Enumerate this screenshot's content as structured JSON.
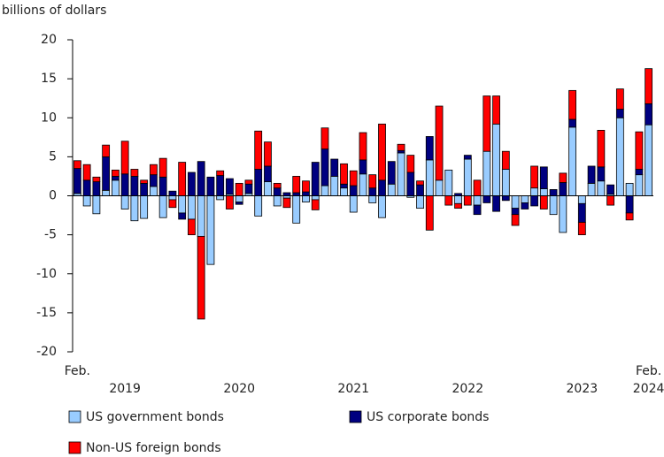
{
  "chart_data": {
    "type": "bar",
    "stacked": true,
    "y_axis_label": "billions of dollars",
    "categories": [
      null,
      null,
      null,
      null,
      null,
      null,
      null,
      null,
      null,
      null,
      null,
      null,
      null,
      null,
      null,
      null,
      null,
      null,
      null,
      null,
      null,
      null,
      null,
      null,
      null,
      null,
      null,
      null,
      null,
      null,
      null,
      null,
      null,
      null,
      null,
      null,
      null,
      null,
      null,
      null,
      null,
      null,
      null,
      null,
      null,
      null,
      null,
      null,
      null,
      null,
      null,
      null,
      null,
      null,
      null,
      null,
      null,
      null,
      null,
      null,
      null
    ],
    "x_axis_labels": [
      "Feb.",
      "2019",
      "2020",
      "2021",
      "2022",
      "2023",
      "Feb.",
      "2024"
    ],
    "series": [
      {
        "name": "US government bonds",
        "color": "#99ccff",
        "values": [
          0.3,
          -1.3,
          -2.3,
          0.7,
          2.0,
          -1.7,
          -3.2,
          -2.9,
          1.2,
          -2.8,
          -0.5,
          -2.2,
          -3.0,
          -5.2,
          -8.8,
          -0.5,
          0.2,
          -0.8,
          0.3,
          -2.6,
          1.8,
          -1.3,
          -0.3,
          -3.5,
          -0.8,
          -0.5,
          1.3,
          2.5,
          1.0,
          -2.1,
          2.8,
          -0.9,
          -2.8,
          1.5,
          5.5,
          -0.2,
          -1.6,
          4.6,
          2.0,
          3.3,
          -1.0,
          4.7,
          -1.2,
          5.7,
          9.2,
          3.4,
          -1.6,
          -0.9,
          1.0,
          0.9,
          -2.4,
          -4.7,
          8.8,
          -1.0,
          1.6,
          1.9,
          0.2,
          10.0,
          1.6,
          2.7,
          9.1
        ]
      },
      {
        "name": "US corporate bonds",
        "color": "#000080",
        "values": [
          3.2,
          2.0,
          1.8,
          4.3,
          0.5,
          2.8,
          2.5,
          1.6,
          1.5,
          2.4,
          0.6,
          -0.8,
          3.0,
          4.4,
          2.4,
          2.6,
          2.0,
          -0.3,
          1.2,
          3.4,
          2.0,
          1.0,
          0.4,
          0.4,
          0.5,
          4.3,
          4.7,
          2.2,
          0.5,
          1.3,
          1.8,
          1.0,
          2.0,
          2.9,
          0.3,
          3.0,
          1.4,
          3.0,
          0,
          0,
          0.3,
          0.5,
          -1.2,
          -0.9,
          -2.0,
          -0.6,
          -0.8,
          -0.8,
          -1.3,
          2.8,
          0.8,
          1.7,
          1.0,
          -2.4,
          2.2,
          1.8,
          1.2,
          1.1,
          -2.2,
          0.7,
          2.7
        ]
      },
      {
        "name": "Non-US foreign bonds",
        "color": "#ff0000",
        "values": [
          1.0,
          2.0,
          0.6,
          1.5,
          0.8,
          4.2,
          0.9,
          0.4,
          1.3,
          2.4,
          -1.0,
          4.3,
          -2.0,
          -10.6,
          0,
          0.6,
          -1.7,
          1.6,
          0.5,
          4.9,
          3.1,
          0.6,
          -1.2,
          2.1,
          1.4,
          -1.3,
          2.7,
          0,
          2.6,
          1.9,
          3.5,
          1.7,
          7.2,
          0,
          0.8,
          2.2,
          0.5,
          -4.4,
          9.5,
          -1.2,
          -0.6,
          -1.2,
          2.0,
          7.1,
          3.6,
          2.3,
          -1.4,
          0,
          2.8,
          -1.7,
          0,
          1.2,
          3.7,
          -1.6,
          0,
          4.7,
          -1.2,
          2.6,
          -0.9,
          4.8,
          4.5
        ]
      }
    ],
    "ylim": [
      -20,
      20
    ],
    "yticks": [
      -20,
      -15,
      -10,
      -5,
      0,
      5,
      10,
      15,
      20
    ],
    "grid": false,
    "legend": "bottom"
  }
}
